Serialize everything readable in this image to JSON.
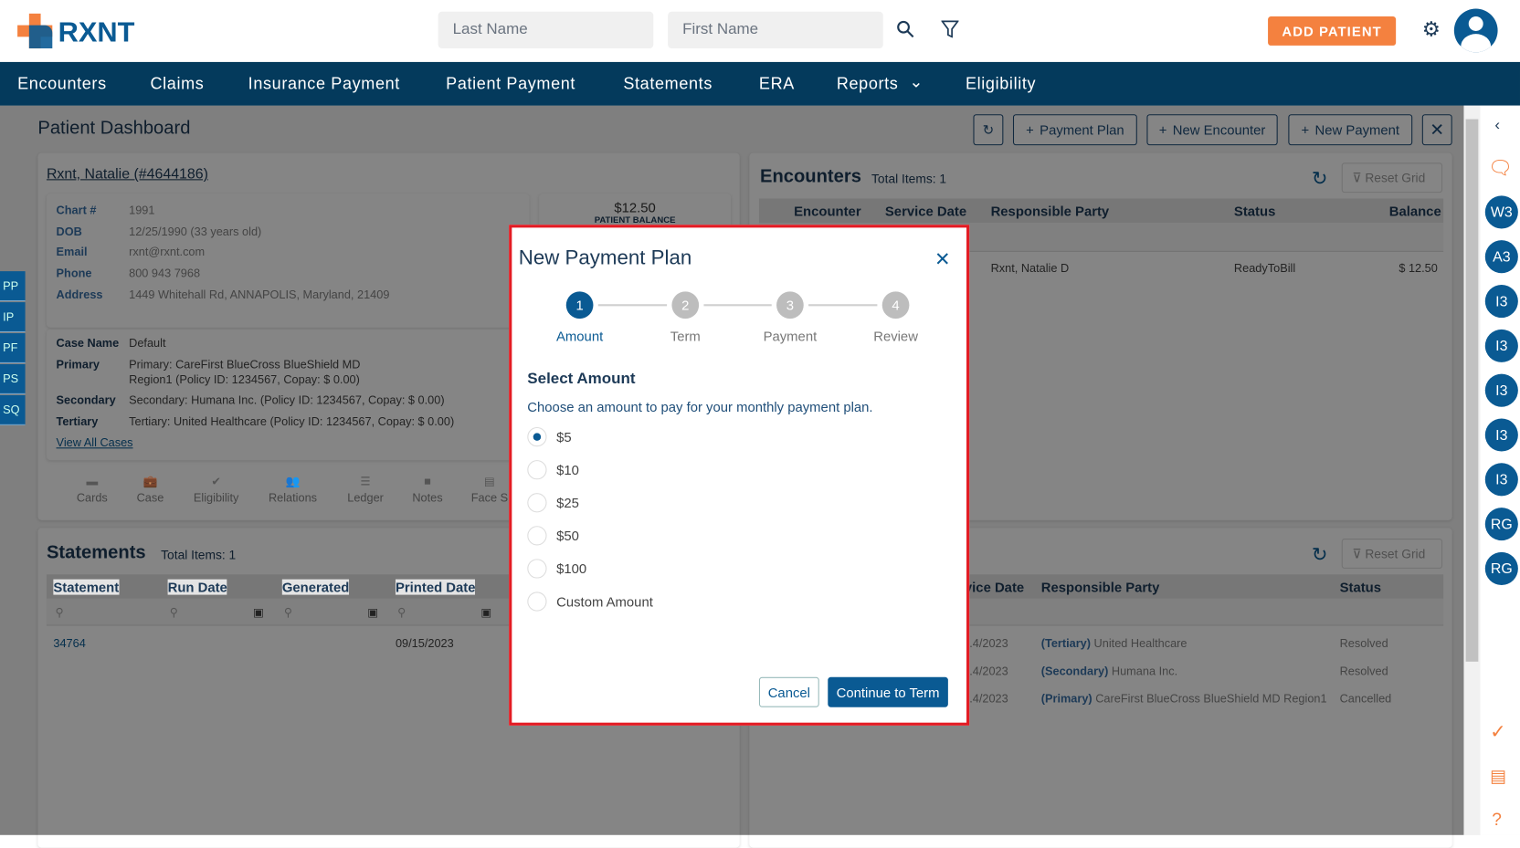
{
  "header": {
    "logo": "RXNT",
    "last_name_placeholder": "Last Name",
    "first_name_placeholder": "First Name",
    "add_patient": "ADD PATIENT",
    "brand_color": "#043a5c",
    "accent_color": "#f4813f"
  },
  "nav": [
    "Encounters",
    "Claims",
    "Insurance Payment",
    "Patient Payment",
    "Statements",
    "ERA",
    "Reports",
    "Eligibility"
  ],
  "page": {
    "title": "Patient Dashboard",
    "buttons": {
      "payment_plan": "Payment Plan",
      "new_encounter": "New Encounter",
      "new_payment": "New Payment"
    }
  },
  "patient": {
    "name": "Rxnt, Natalie (#4644186)",
    "fields": [
      {
        "label": "Chart #",
        "value": "1991"
      },
      {
        "label": "DOB",
        "value": "12/25/1990 (33 years old)"
      },
      {
        "label": "Email",
        "value": "rxnt@rxnt.com"
      },
      {
        "label": "Phone",
        "value": "800 943 7968"
      },
      {
        "label": "Address",
        "value": "1449 Whitehall Rd, ANNAPOLIS, Maryland, 21409"
      }
    ],
    "balance": "$12.50",
    "balance_label": "PATIENT BALANCE",
    "case": [
      {
        "label": "Case Name",
        "value": "Default"
      },
      {
        "label": "Primary",
        "value": "Primary: CareFirst BlueCross BlueShield MD",
        "value2": "Region1 (Policy ID: 1234567, Copay: $ 0.00)"
      },
      {
        "label": "Secondary",
        "value": "Secondary: Humana Inc. (Policy ID: 1234567, Copay: $ 0.00)"
      },
      {
        "label": "Tertiary",
        "value": "Tertiary: United Healthcare (Policy ID: 1234567, Copay: $ 0.00)"
      }
    ],
    "view_all_cases": "View All Cases",
    "actions": [
      "Cards",
      "Case",
      "Eligibility",
      "Relations",
      "Ledger",
      "Notes",
      "Face S"
    ]
  },
  "left_tabs": [
    "PP",
    "IP",
    "PF",
    "PS",
    "SQ"
  ],
  "encounters": {
    "title": "Encounters",
    "total": "Total Items: 1",
    "reset": "Reset Grid",
    "columns": [
      "Encounter",
      "Service Date",
      "Responsible Party",
      "Status",
      "Balance"
    ],
    "rows": [
      {
        "party": "Rxnt, Natalie D",
        "status": "ReadyToBill",
        "balance": "$ 12.50"
      }
    ]
  },
  "statements": {
    "title": "Statements",
    "total": "Total Items: 1",
    "columns": [
      "Statement",
      "Run Date",
      "Generated",
      "Printed Date"
    ],
    "rows": [
      {
        "statement": "34764",
        "printed": "09/15/2023"
      }
    ]
  },
  "claims_grid": {
    "reset": "Reset Grid",
    "columns": [
      "vice Date",
      "Responsible Party",
      "Status"
    ],
    "rows": [
      {
        "date": ".4/2023",
        "prefix": "(Tertiary)",
        "party": "United Healthcare",
        "status": "Resolved"
      },
      {
        "date": ".4/2023",
        "prefix": "(Secondary)",
        "party": "Humana Inc.",
        "status": "Resolved"
      },
      {
        "date": ".4/2023",
        "prefix": "(Primary)",
        "party": "CareFirst BlueCross BlueShield MD Region1",
        "status": "Cancelled"
      }
    ]
  },
  "right_sidebar": {
    "badges": [
      "W3",
      "A3",
      "I3",
      "I3",
      "I3",
      "I3",
      "I3",
      "RG",
      "RG"
    ]
  },
  "modal": {
    "title": "New Payment Plan",
    "steps": [
      {
        "n": "1",
        "label": "Amount"
      },
      {
        "n": "2",
        "label": "Term"
      },
      {
        "n": "3",
        "label": "Payment"
      },
      {
        "n": "4",
        "label": "Review"
      }
    ],
    "active_step": 1,
    "section_title": "Select Amount",
    "description": "Choose an amount to pay for your monthly payment plan.",
    "options": [
      "$5",
      "$10",
      "$25",
      "$50",
      "$100",
      "Custom Amount"
    ],
    "selected": "$5",
    "cancel": "Cancel",
    "continue": "Continue to Term",
    "highlight_color": "#e31b23"
  }
}
